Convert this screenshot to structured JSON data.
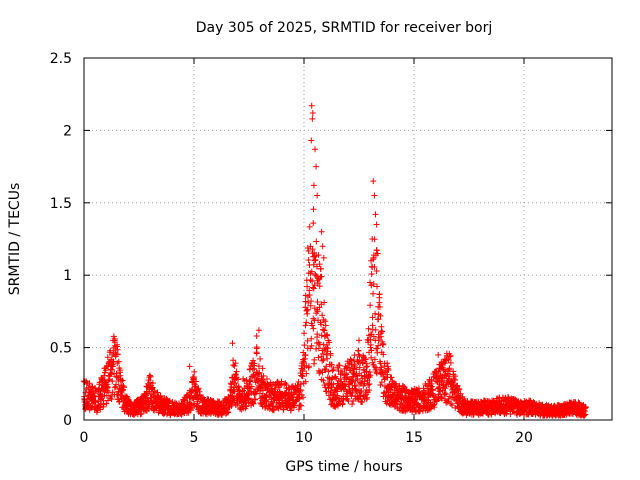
{
  "chart_data": {
    "type": "scatter",
    "title": "Day 305 of 2025, SRMTID for receiver borj",
    "xlabel": "GPS time / hours",
    "ylabel": "SRMTID / TECUs",
    "xlim": [
      0,
      24
    ],
    "ylim": [
      0,
      2.5
    ],
    "xticks": [
      0,
      5,
      10,
      15,
      20
    ],
    "xtick_labels": [
      "0",
      "5",
      "10",
      "15",
      "20"
    ],
    "yticks": [
      0,
      0.5,
      1,
      1.5,
      2,
      2.5
    ],
    "ytick_labels": [
      "0",
      "0.5",
      "1",
      "1.5",
      "2",
      "2.5"
    ],
    "grid": true,
    "marker": "+",
    "color": "#ff0000",
    "series": [
      {
        "name": "SRMTID",
        "profile_x": [
          0,
          0.3,
          0.6,
          0.9,
          1.2,
          1.4,
          1.6,
          1.9,
          2.3,
          2.7,
          3.0,
          3.3,
          3.8,
          4.3,
          4.8,
          5.0,
          5.3,
          5.8,
          6.2,
          6.6,
          6.8,
          7.1,
          7.5,
          7.9,
          8.2,
          8.6,
          9.0,
          9.4,
          9.8,
          10.0,
          10.2,
          10.4,
          10.6,
          10.8,
          11.0,
          11.3,
          11.7,
          12.1,
          12.5,
          12.8,
          13.0,
          13.2,
          13.4,
          13.6,
          13.9,
          14.3,
          14.8,
          15.3,
          15.7,
          16.0,
          16.3,
          16.6,
          16.9,
          17.3,
          17.8,
          18.3,
          18.8,
          19.3,
          19.8,
          20.3,
          20.8,
          21.3,
          21.8,
          22.3,
          22.8
        ],
        "profile_y": [
          0.2,
          0.18,
          0.15,
          0.25,
          0.35,
          0.45,
          0.3,
          0.12,
          0.09,
          0.12,
          0.22,
          0.14,
          0.1,
          0.08,
          0.14,
          0.25,
          0.12,
          0.1,
          0.09,
          0.12,
          0.32,
          0.18,
          0.25,
          0.38,
          0.22,
          0.18,
          0.2,
          0.16,
          0.2,
          0.45,
          0.9,
          1.1,
          0.85,
          0.75,
          0.5,
          0.25,
          0.28,
          0.3,
          0.35,
          0.3,
          0.6,
          1.0,
          0.75,
          0.4,
          0.22,
          0.18,
          0.15,
          0.16,
          0.2,
          0.25,
          0.3,
          0.35,
          0.2,
          0.1,
          0.09,
          0.1,
          0.11,
          0.12,
          0.09,
          0.1,
          0.08,
          0.07,
          0.08,
          0.1,
          0.07
        ],
        "peaks": [
          {
            "x": 10.35,
            "y": 2.17
          },
          {
            "x": 10.4,
            "y": 2.12
          },
          {
            "x": 10.38,
            "y": 2.08
          },
          {
            "x": 10.33,
            "y": 1.93
          },
          {
            "x": 10.5,
            "y": 1.87
          },
          {
            "x": 10.55,
            "y": 1.75
          },
          {
            "x": 10.45,
            "y": 1.62
          },
          {
            "x": 10.6,
            "y": 1.55
          },
          {
            "x": 10.42,
            "y": 1.36
          },
          {
            "x": 10.8,
            "y": 1.3
          },
          {
            "x": 10.85,
            "y": 1.2
          },
          {
            "x": 10.9,
            "y": 1.12
          },
          {
            "x": 13.15,
            "y": 1.65
          },
          {
            "x": 13.2,
            "y": 1.55
          },
          {
            "x": 13.25,
            "y": 1.42
          },
          {
            "x": 13.3,
            "y": 1.35
          },
          {
            "x": 13.1,
            "y": 1.25
          },
          {
            "x": 13.35,
            "y": 1.15
          },
          {
            "x": 13.05,
            "y": 1.1
          },
          {
            "x": 13.0,
            "y": 0.95
          },
          {
            "x": 13.45,
            "y": 0.78
          },
          {
            "x": 13.5,
            "y": 0.6
          },
          {
            "x": 13.6,
            "y": 0.52
          },
          {
            "x": 7.95,
            "y": 0.62
          },
          {
            "x": 7.85,
            "y": 0.58
          },
          {
            "x": 6.75,
            "y": 0.53
          },
          {
            "x": 1.4,
            "y": 0.56
          },
          {
            "x": 1.5,
            "y": 0.52
          },
          {
            "x": 16.4,
            "y": 0.42
          },
          {
            "x": 16.1,
            "y": 0.45
          },
          {
            "x": 12.5,
            "y": 0.55
          },
          {
            "x": 4.8,
            "y": 0.37
          }
        ]
      }
    ]
  }
}
